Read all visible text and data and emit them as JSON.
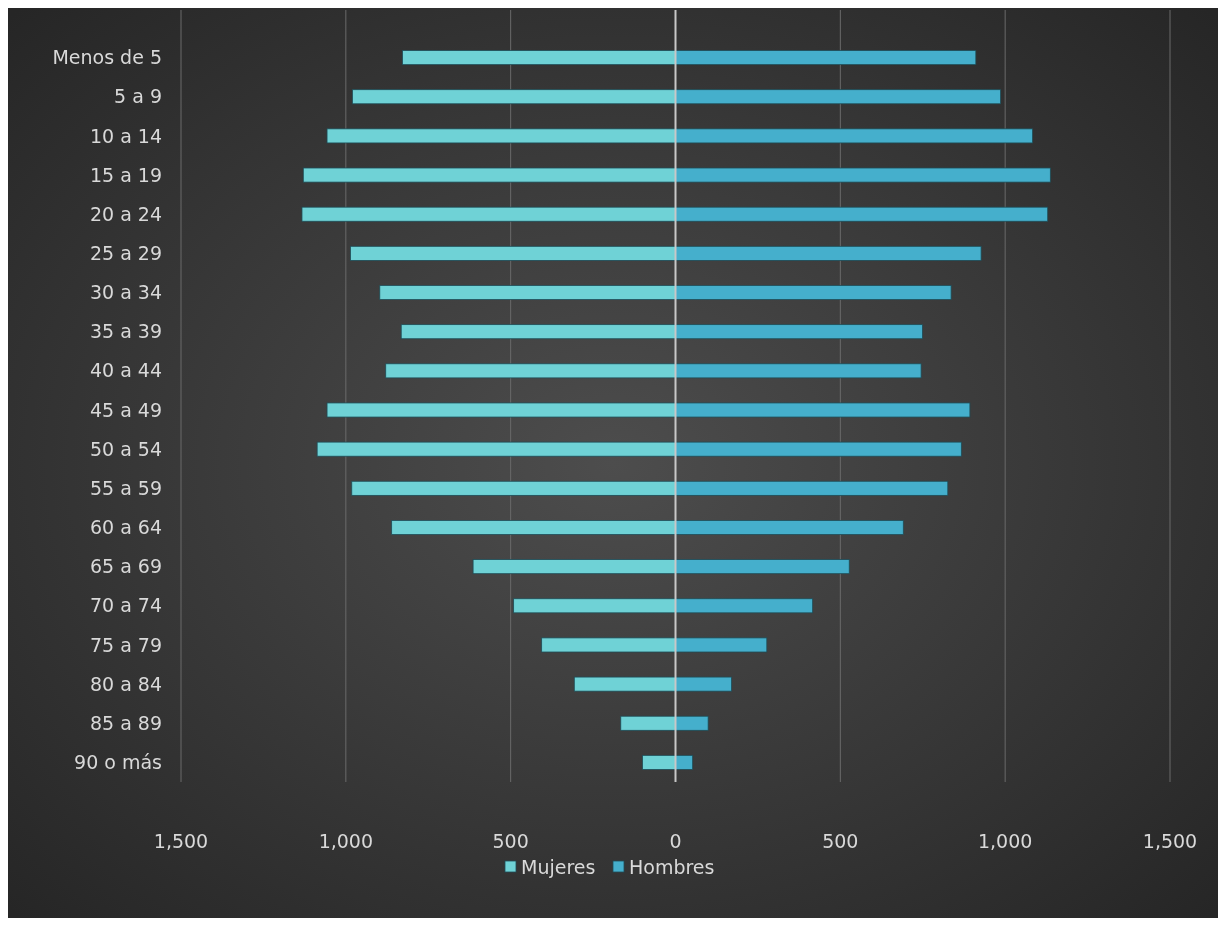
{
  "chart_data": {
    "type": "bar",
    "orientation": "horizontal",
    "categories": [
      "Menos de 5",
      "5 a 9",
      "10 a 14",
      "15 a 19",
      "20 a 24",
      "25 a 29",
      "30 a 34",
      "35 a 39",
      "40 a 44",
      "45 a 49",
      "50 a 54",
      "55 a 59",
      "60 a 64",
      "65 a 69",
      "70 a 74",
      "75 a 79",
      "80 a 84",
      "85 a 89",
      "90 o más"
    ],
    "series": [
      {
        "name": "Mujeres",
        "color": "#6fd2d6",
        "values": [
          -828,
          -980,
          -1057,
          -1129,
          -1133,
          -986,
          -897,
          -832,
          -879,
          -1057,
          -1087,
          -982,
          -861,
          -614,
          -491,
          -406,
          -307,
          -166,
          -100
        ]
      },
      {
        "name": "Hombres",
        "color": "#45afcc",
        "values": [
          911,
          986,
          1083,
          1137,
          1129,
          927,
          836,
          749,
          745,
          893,
          867,
          826,
          691,
          527,
          416,
          277,
          170,
          99,
          52
        ]
      }
    ],
    "xlim": [
      -1500,
      1500
    ],
    "xticks": [
      {
        "value": -1500,
        "label": "1,500"
      },
      {
        "value": -1000,
        "label": "1,000"
      },
      {
        "value": -500,
        "label": "500"
      },
      0,
      500,
      {
        "value": 1000,
        "label": "1,000"
      },
      {
        "value": 1500,
        "label": "1,500"
      }
    ],
    "grid": "x",
    "legend": "bottom",
    "stacked": true
  }
}
